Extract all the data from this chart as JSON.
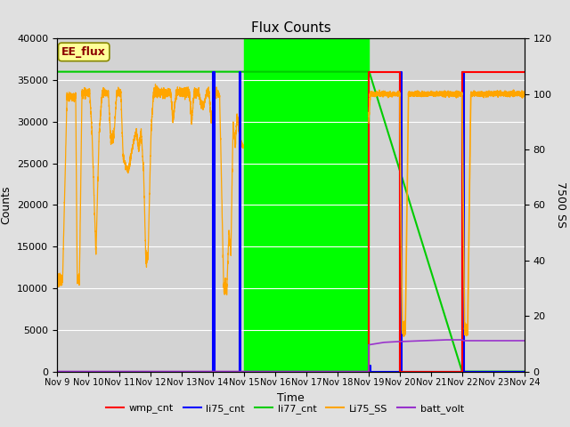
{
  "title": "Flux Counts",
  "xlabel": "Time",
  "ylabel_left": "Counts",
  "ylabel_right": "7500 SS",
  "ylim_left": [
    0,
    40000
  ],
  "ylim_right": [
    0,
    120
  ],
  "background_color": "#e0e0e0",
  "plot_bg_color": "#d3d3d3",
  "annotation_text": "EE_flux",
  "annotation_box_color": "#ffff99",
  "annotation_text_color": "#8b0000",
  "legend_entries": [
    "wmp_cnt",
    "li75_cnt",
    "li77_cnt",
    "Li75_SS",
    "batt_volt"
  ],
  "legend_colors": [
    "#ff0000",
    "#0000ff",
    "#00dd00",
    "#ffa500",
    "#9933cc"
  ],
  "x_ticks": [
    0,
    1,
    2,
    3,
    4,
    5,
    6,
    7,
    8,
    9,
    10,
    11,
    12,
    13,
    14,
    15
  ],
  "x_tick_labels": [
    "Nov 9",
    "Nov 10",
    "Nov 11",
    "Nov 12",
    "Nov 13",
    "Nov 14",
    "Nov 15",
    "Nov 16",
    "Nov 17",
    "Nov 18",
    "Nov 19",
    "Nov 20",
    "Nov 21",
    "Nov 22",
    "Nov 23",
    "Nov 24"
  ],
  "y_ticks_left": [
    0,
    5000,
    10000,
    15000,
    20000,
    25000,
    30000,
    35000,
    40000
  ],
  "y_ticks_right": [
    0,
    20,
    40,
    60,
    80,
    100,
    120
  ],
  "green_span_start": 6.0,
  "green_span_end": 10.0,
  "nov9": 0,
  "nov10": 1,
  "nov11": 2,
  "nov12": 3,
  "nov13": 4,
  "nov14": 5,
  "nov15": 6,
  "nov16": 7,
  "nov17": 8,
  "nov18": 9,
  "nov19": 10,
  "nov20": 11,
  "nov21": 12,
  "nov22": 13,
  "nov23": 14,
  "nov24": 15
}
